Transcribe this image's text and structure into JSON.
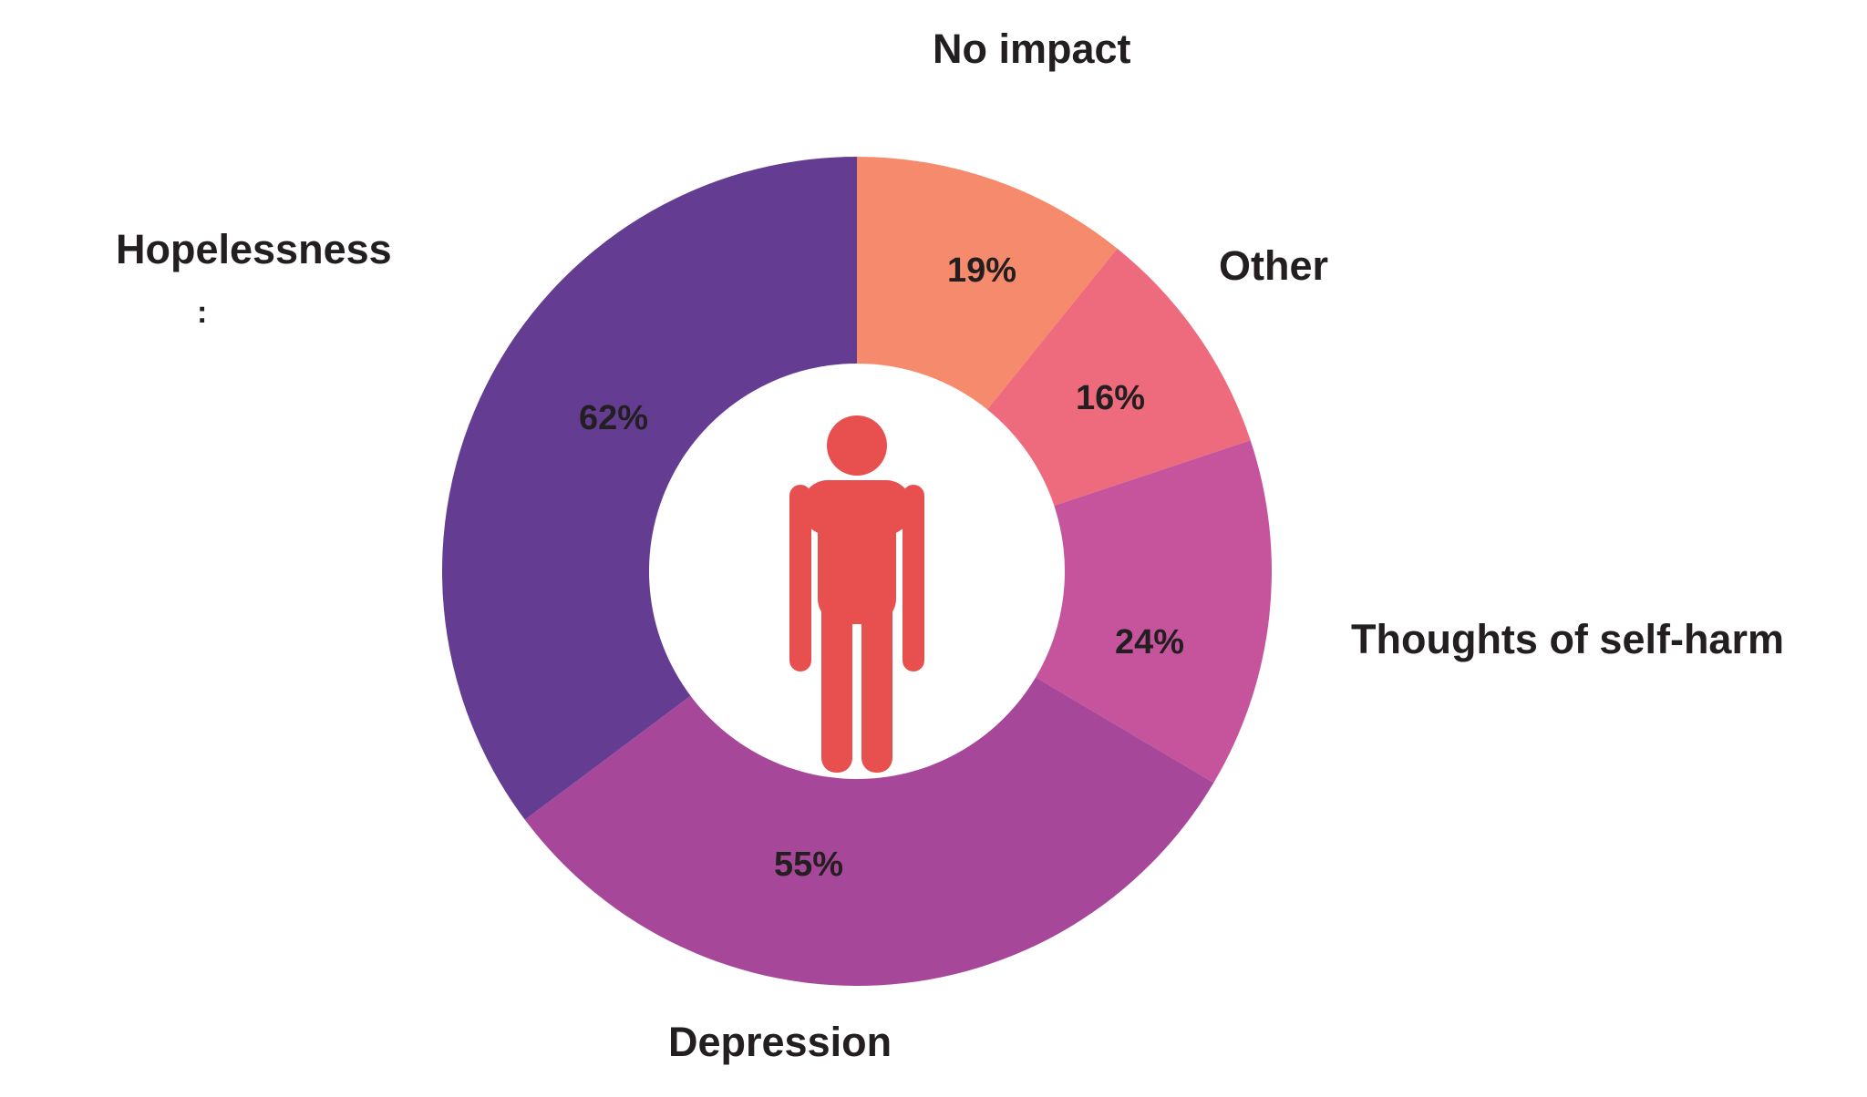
{
  "page": {
    "background_color": "#FFFFFF",
    "text_color": "#231F20"
  },
  "chart_data": {
    "type": "pie",
    "variant": "donut",
    "title": "",
    "categories": [
      "No impact",
      "Other",
      "Thoughts of self-harm",
      "Depression",
      "Hopelessness"
    ],
    "values": [
      19,
      16,
      24,
      55,
      62
    ],
    "value_labels": [
      "19%",
      "16%",
      "24%",
      "55%",
      "62%"
    ],
    "colors": [
      "#F58B6C",
      "#EE6A7D",
      "#C6549C",
      "#A7479A",
      "#643C92"
    ],
    "unit": "%",
    "start_angle_deg": 0,
    "direction": "clockwise",
    "legend_position": "labels-around-chart",
    "grid": false,
    "stray_mark": ":",
    "center_icon": {
      "name": "person-icon",
      "color": "#E8504F",
      "background": "#FFFFFF"
    }
  }
}
